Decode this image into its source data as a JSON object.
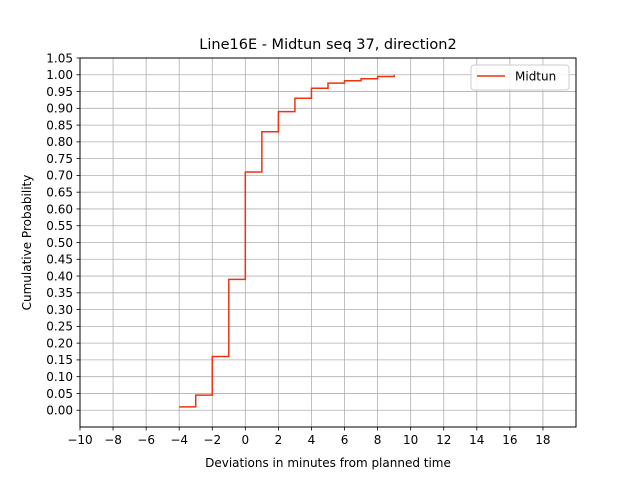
{
  "chart_data": {
    "type": "line",
    "title": "Line16E - Midtun seq 37, direction2",
    "xlabel": "Deviations in minutes from planned time",
    "ylabel": "Cumulative Probability",
    "xlim": [
      -10,
      20
    ],
    "ylim": [
      -0.05,
      1.05
    ],
    "x_ticks": [
      -10,
      -8,
      -6,
      -4,
      -2,
      0,
      2,
      4,
      6,
      8,
      10,
      12,
      14,
      16,
      18
    ],
    "x_tick_labels": [
      "−10",
      "−8",
      "−6",
      "−4",
      "−2",
      "0",
      "2",
      "4",
      "6",
      "8",
      "10",
      "12",
      "14",
      "16",
      "18"
    ],
    "y_ticks": [
      0.0,
      0.05,
      0.1,
      0.15,
      0.2,
      0.25,
      0.3,
      0.35,
      0.4,
      0.45,
      0.5,
      0.55,
      0.6,
      0.65,
      0.7,
      0.75,
      0.8,
      0.85,
      0.9,
      0.95,
      1.0,
      1.05
    ],
    "y_tick_labels": [
      "0.00",
      "0.05",
      "0.10",
      "0.15",
      "0.20",
      "0.25",
      "0.30",
      "0.35",
      "0.40",
      "0.45",
      "0.50",
      "0.55",
      "0.60",
      "0.65",
      "0.70",
      "0.75",
      "0.80",
      "0.85",
      "0.90",
      "0.95",
      "1.00",
      "1.05"
    ],
    "grid": true,
    "legend_position": "top-right",
    "step": "post",
    "series": [
      {
        "name": "Midtun",
        "color": "#ee3311",
        "x": [
          -4,
          -3,
          -2,
          -1,
          0,
          1,
          2,
          3,
          4,
          5,
          6,
          7,
          8,
          9
        ],
        "y": [
          0.01,
          0.045,
          0.16,
          0.39,
          0.71,
          0.83,
          0.89,
          0.93,
          0.96,
          0.975,
          0.982,
          0.988,
          0.995,
          1.0
        ]
      }
    ]
  }
}
